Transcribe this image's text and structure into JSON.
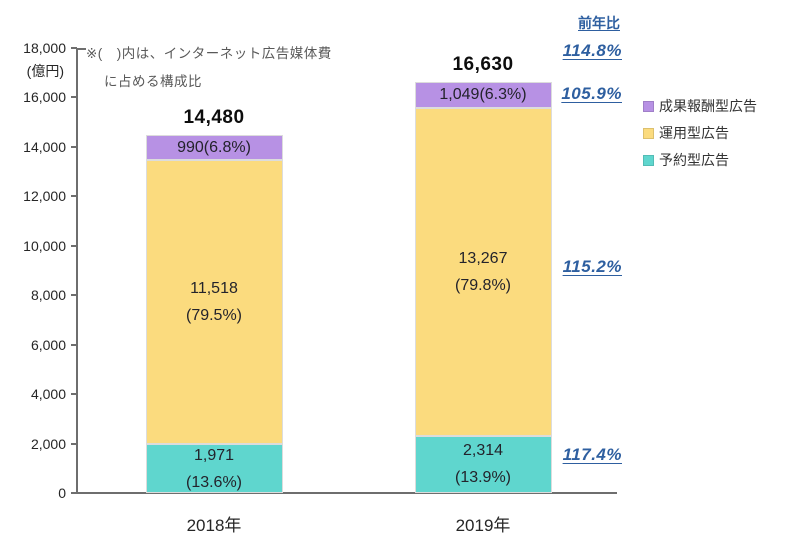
{
  "chart_data": {
    "type": "bar",
    "stacked": true,
    "categories": [
      "2018年",
      "2019年"
    ],
    "unit_label": "(億円)",
    "annotation": {
      "line1": "※(　)内は、インターネット広告媒体費",
      "line2": "に占める構成比"
    },
    "yoy_header": "前年比",
    "total_yoy": "114.8%",
    "ylim": [
      0,
      18000
    ],
    "ytick_step": 2000,
    "ytick_labels": [
      "0",
      "2,000",
      "4,000",
      "6,000",
      "8,000",
      "10,000",
      "12,000",
      "14,000",
      "16,000",
      "18,000"
    ],
    "grid": false,
    "legend_position": "right",
    "legend": [
      "成果報酬型広告",
      "運用型広告",
      "予約型広告"
    ],
    "series": [
      {
        "name": "予約型広告",
        "color": "#5fd6ce",
        "values": [
          1971,
          2314
        ],
        "segment_labels": [
          [
            "1,971",
            "(13.6%)"
          ],
          [
            "2,314",
            "(13.9%)"
          ]
        ],
        "yoy": "117.4%"
      },
      {
        "name": "運用型広告",
        "color": "#fbdb7e",
        "values": [
          11518,
          13267
        ],
        "segment_labels": [
          [
            "11,518",
            "(79.5%)"
          ],
          [
            "13,267",
            "(79.8%)"
          ]
        ],
        "yoy": "115.2%"
      },
      {
        "name": "成果報酬型広告",
        "color": "#b791e4",
        "values": [
          990,
          1049
        ],
        "segment_labels": [
          [
            "990(6.8%)"
          ],
          [
            "1,049(6.3%)"
          ]
        ],
        "yoy": "105.9%"
      }
    ],
    "totals": {
      "values": [
        14480,
        16630
      ],
      "labels": [
        "14,480",
        "16,630"
      ]
    },
    "colors": {
      "yoy_text": "#2e5fa0",
      "axis": "#6e6e6e",
      "segment_border": "#dcdcdc"
    }
  }
}
